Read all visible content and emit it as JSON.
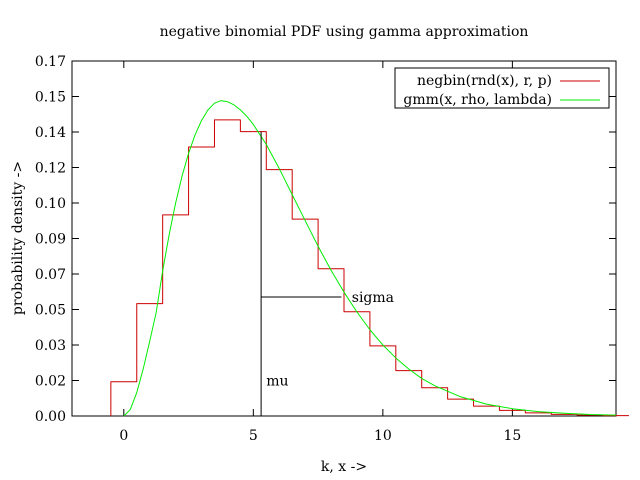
{
  "chart_data": {
    "type": "line",
    "title": "negative binomial PDF using gamma approximation",
    "xlabel": "k, x ->",
    "ylabel": "probability density ->",
    "xlim": [
      -2,
      19
    ],
    "ylim": [
      0,
      0.17
    ],
    "x_ticks": [
      0,
      5,
      10,
      15
    ],
    "y_ticks": [
      {
        "value": 0.0,
        "label": "0.00"
      },
      {
        "value": 0.017,
        "label": "0.02"
      },
      {
        "value": 0.034,
        "label": "0.03"
      },
      {
        "value": 0.051,
        "label": "0.05"
      },
      {
        "value": 0.068,
        "label": "0.07"
      },
      {
        "value": 0.085,
        "label": "0.09"
      },
      {
        "value": 0.102,
        "label": "0.10"
      },
      {
        "value": 0.119,
        "label": "0.12"
      },
      {
        "value": 0.136,
        "label": "0.14"
      },
      {
        "value": 0.153,
        "label": "0.15"
      },
      {
        "value": 0.17,
        "label": "0.17"
      }
    ],
    "grid": false,
    "legend_position": "top-right",
    "series": [
      {
        "name": "negbin(rnd(x), r, p)",
        "style": "step",
        "color": "#cc0000",
        "bin_width": 1,
        "bins": [
          {
            "k": 0,
            "y": 0.0164
          },
          {
            "k": 1,
            "y": 0.0538
          },
          {
            "k": 2,
            "y": 0.0963
          },
          {
            "k": 3,
            "y": 0.1288
          },
          {
            "k": 4,
            "y": 0.1418
          },
          {
            "k": 5,
            "y": 0.1362
          },
          {
            "k": 6,
            "y": 0.118
          },
          {
            "k": 7,
            "y": 0.0943
          },
          {
            "k": 8,
            "y": 0.0705
          },
          {
            "k": 9,
            "y": 0.0499
          },
          {
            "k": 10,
            "y": 0.0336
          },
          {
            "k": 11,
            "y": 0.0217
          },
          {
            "k": 12,
            "y": 0.0135
          },
          {
            "k": 13,
            "y": 0.0081
          },
          {
            "k": 14,
            "y": 0.0047
          },
          {
            "k": 15,
            "y": 0.0027
          },
          {
            "k": 16,
            "y": 0.0015
          },
          {
            "k": 17,
            "y": 0.0008
          },
          {
            "k": 18,
            "y": 0.0004
          },
          {
            "k": 19,
            "y": 0.0002
          }
        ]
      },
      {
        "name": "gmm(x, rho, lambda)",
        "style": "line",
        "color": "#00ee00",
        "x": [
          0,
          0.25,
          0.5,
          0.75,
          1.0,
          1.25,
          1.5,
          1.75,
          2.0,
          2.25,
          2.5,
          2.75,
          3.0,
          3.25,
          3.5,
          3.75,
          4.0,
          4.25,
          4.5,
          4.75,
          5.0,
          5.5,
          6.0,
          6.5,
          7.0,
          7.5,
          8.0,
          8.5,
          9.0,
          9.5,
          10.0,
          10.5,
          11.0,
          11.5,
          12.0,
          13.0,
          14.0,
          15.0,
          16.0,
          17.0,
          18.0,
          19.0
        ],
        "y": [
          0.0,
          0.0031,
          0.0112,
          0.0226,
          0.0358,
          0.0496,
          0.0695,
          0.0868,
          0.102,
          0.115,
          0.1258,
          0.1346,
          0.1415,
          0.1466,
          0.1498,
          0.151,
          0.1505,
          0.149,
          0.1466,
          0.1435,
          0.1396,
          0.13,
          0.1185,
          0.106,
          0.0936,
          0.0813,
          0.0698,
          0.0593,
          0.0498,
          0.0413,
          0.034,
          0.0278,
          0.0225,
          0.018,
          0.0145,
          0.0092,
          0.0057,
          0.0035,
          0.0021,
          0.0013,
          0.0007,
          0.0004
        ]
      }
    ],
    "annotations": [
      {
        "text": "mu",
        "line": "vertical",
        "x": 5.3,
        "y0": 0,
        "y1": 0.1362,
        "label_at": [
          5.5,
          0.017
        ]
      },
      {
        "text": "sigma",
        "line": "horizontal",
        "y": 0.057,
        "x0": 5.3,
        "x1": 8.4,
        "label_at": [
          8.8,
          0.057
        ]
      }
    ]
  }
}
